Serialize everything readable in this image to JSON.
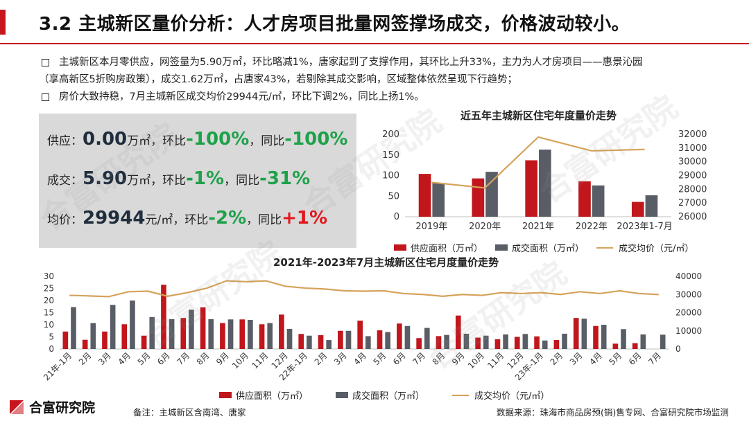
{
  "title": "3.2 主城新区量价分析：人才房项目批量网签撑场成交，价格波动较小。",
  "bullets": [
    {
      "line1": "主城新区本月零供应，网签量为5.90万㎡，环比略减1%，唐家起到了支撑作用，其环比上升33%，主力为人才房项目——惠景沁园",
      "line2": "（享高新区5折购房政策），成交1.62万㎡，占唐家43%，若剔除其成交影响，区域整体依然呈现下行趋势；"
    },
    {
      "line1": "房价大致持稳，7月主城新区成交均价29944元/㎡，环比下调2%，同比上扬1%。"
    }
  ],
  "kpi": {
    "supply_label": "供应：",
    "supply_value": "0.00",
    "supply_unit": "万㎡，环比",
    "supply_mom": "-100%",
    "supply_sep": "，同比",
    "supply_yoy": "-100%",
    "deal_label": "成交：",
    "deal_value": "5.90",
    "deal_unit": "万㎡，环比",
    "deal_mom": "-1%",
    "deal_sep": "，同比",
    "deal_yoy": "-31%",
    "price_label": "均价：",
    "price_value": "29944",
    "price_unit": "元/㎡，环比",
    "price_mom": "-2%",
    "price_sep": "，同比",
    "price_yoy": "+1%"
  },
  "colors": {
    "accent": "#c8161d",
    "supply": "#c0161c",
    "deal": "#595e66",
    "price": "#d6a25a",
    "positive": "#1fa14a",
    "negative": "#e3161d"
  },
  "chart_data": [
    {
      "type": "bar",
      "title": "近五年主城新区住宅年度量价走势",
      "categories": [
        "2019年",
        "2020年",
        "2021年",
        "2022年",
        "2023年1-7月"
      ],
      "series": [
        {
          "name": "供应面积（万㎡）",
          "kind": "bar",
          "axis": "left",
          "values": [
            104,
            93,
            137,
            86,
            36
          ]
        },
        {
          "name": "成交面积（万㎡）",
          "kind": "bar",
          "axis": "left",
          "values": [
            82,
            109,
            163,
            76,
            52
          ]
        },
        {
          "name": "成交均价（元/㎡）",
          "kind": "line",
          "axis": "right",
          "values": [
            28500,
            28100,
            31800,
            30800,
            30900
          ]
        }
      ],
      "ylim_left": [
        0,
        200
      ],
      "yticks_left": [
        0,
        50,
        100,
        150,
        200
      ],
      "ylim_right": [
        26000,
        32000
      ],
      "yticks_right": [
        "26000",
        "27000",
        "28000",
        "29000",
        "30000",
        "31000",
        "32000"
      ],
      "legend": "bottom"
    },
    {
      "type": "bar",
      "title": "2021年-2023年7月主城新区住宅月度量价走势",
      "categories": [
        "21年-1月",
        "2月",
        "3月",
        "4月",
        "5月",
        "6月",
        "7月",
        "8月",
        "9月",
        "10月",
        "11月",
        "12月",
        "22年-1月",
        "2月",
        "3月",
        "4月",
        "5月",
        "6月",
        "7月",
        "8月",
        "9月",
        "10月",
        "11月",
        "12月",
        "23年-1月",
        "2月",
        "3月",
        "4月",
        "5月",
        "6月",
        "7月"
      ],
      "series": [
        {
          "name": "供应面积（万㎡）",
          "kind": "bar",
          "axis": "left",
          "values": [
            7.2,
            3.8,
            7.2,
            10.2,
            5.5,
            26.5,
            12.8,
            17.2,
            10.7,
            12.2,
            10.2,
            14.2,
            6.2,
            5.7,
            7.5,
            11.7,
            7.7,
            10.5,
            4.5,
            5.3,
            13.8,
            4.7,
            4.0,
            5.0,
            5.2,
            3.7,
            12.8,
            9.5,
            2.2,
            2.4,
            0.0
          ]
        },
        {
          "name": "成交面积（万㎡）",
          "kind": "bar",
          "axis": "left",
          "values": [
            17.3,
            10.7,
            18.2,
            20.0,
            13.2,
            12.3,
            16.2,
            12.3,
            12.2,
            12.0,
            10.7,
            8.3,
            5.5,
            3.7,
            7.5,
            5.3,
            7.0,
            9.5,
            8.7,
            5.8,
            6.3,
            5.5,
            6.0,
            6.2,
            3.5,
            6.3,
            12.5,
            10.0,
            8.2,
            6.0,
            5.9
          ]
        },
        {
          "name": "成交均价（元/㎡）",
          "kind": "line",
          "axis": "right",
          "values": [
            29500,
            29200,
            28800,
            31500,
            31800,
            29000,
            31000,
            33500,
            37500,
            37000,
            37500,
            34500,
            33500,
            33000,
            32000,
            31800,
            32000,
            30500,
            30000,
            29000,
            30000,
            29500,
            31000,
            30500,
            31000,
            30000,
            31500,
            30500,
            32000,
            30500,
            29944
          ]
        }
      ],
      "ylim_left": [
        0,
        30
      ],
      "yticks_left": [
        0,
        5,
        10,
        15,
        20,
        25,
        30
      ],
      "ylim_right": [
        0,
        40000
      ],
      "yticks_right": [
        "0",
        "10000",
        "20000",
        "30000",
        "40000"
      ],
      "legend": "bottom"
    }
  ],
  "legend_labels": {
    "supply": "供应面积（万㎡）",
    "deal": "成交面积（万㎡）",
    "price": "成交均价（元/㎡）"
  },
  "footer": {
    "brand": "合富研究院",
    "note": "备注：主城新区含南湾、唐家",
    "source": "数据来源：珠海市商品房预(销)售专网、合富研究院市场监测"
  },
  "watermark": "合富研究院"
}
